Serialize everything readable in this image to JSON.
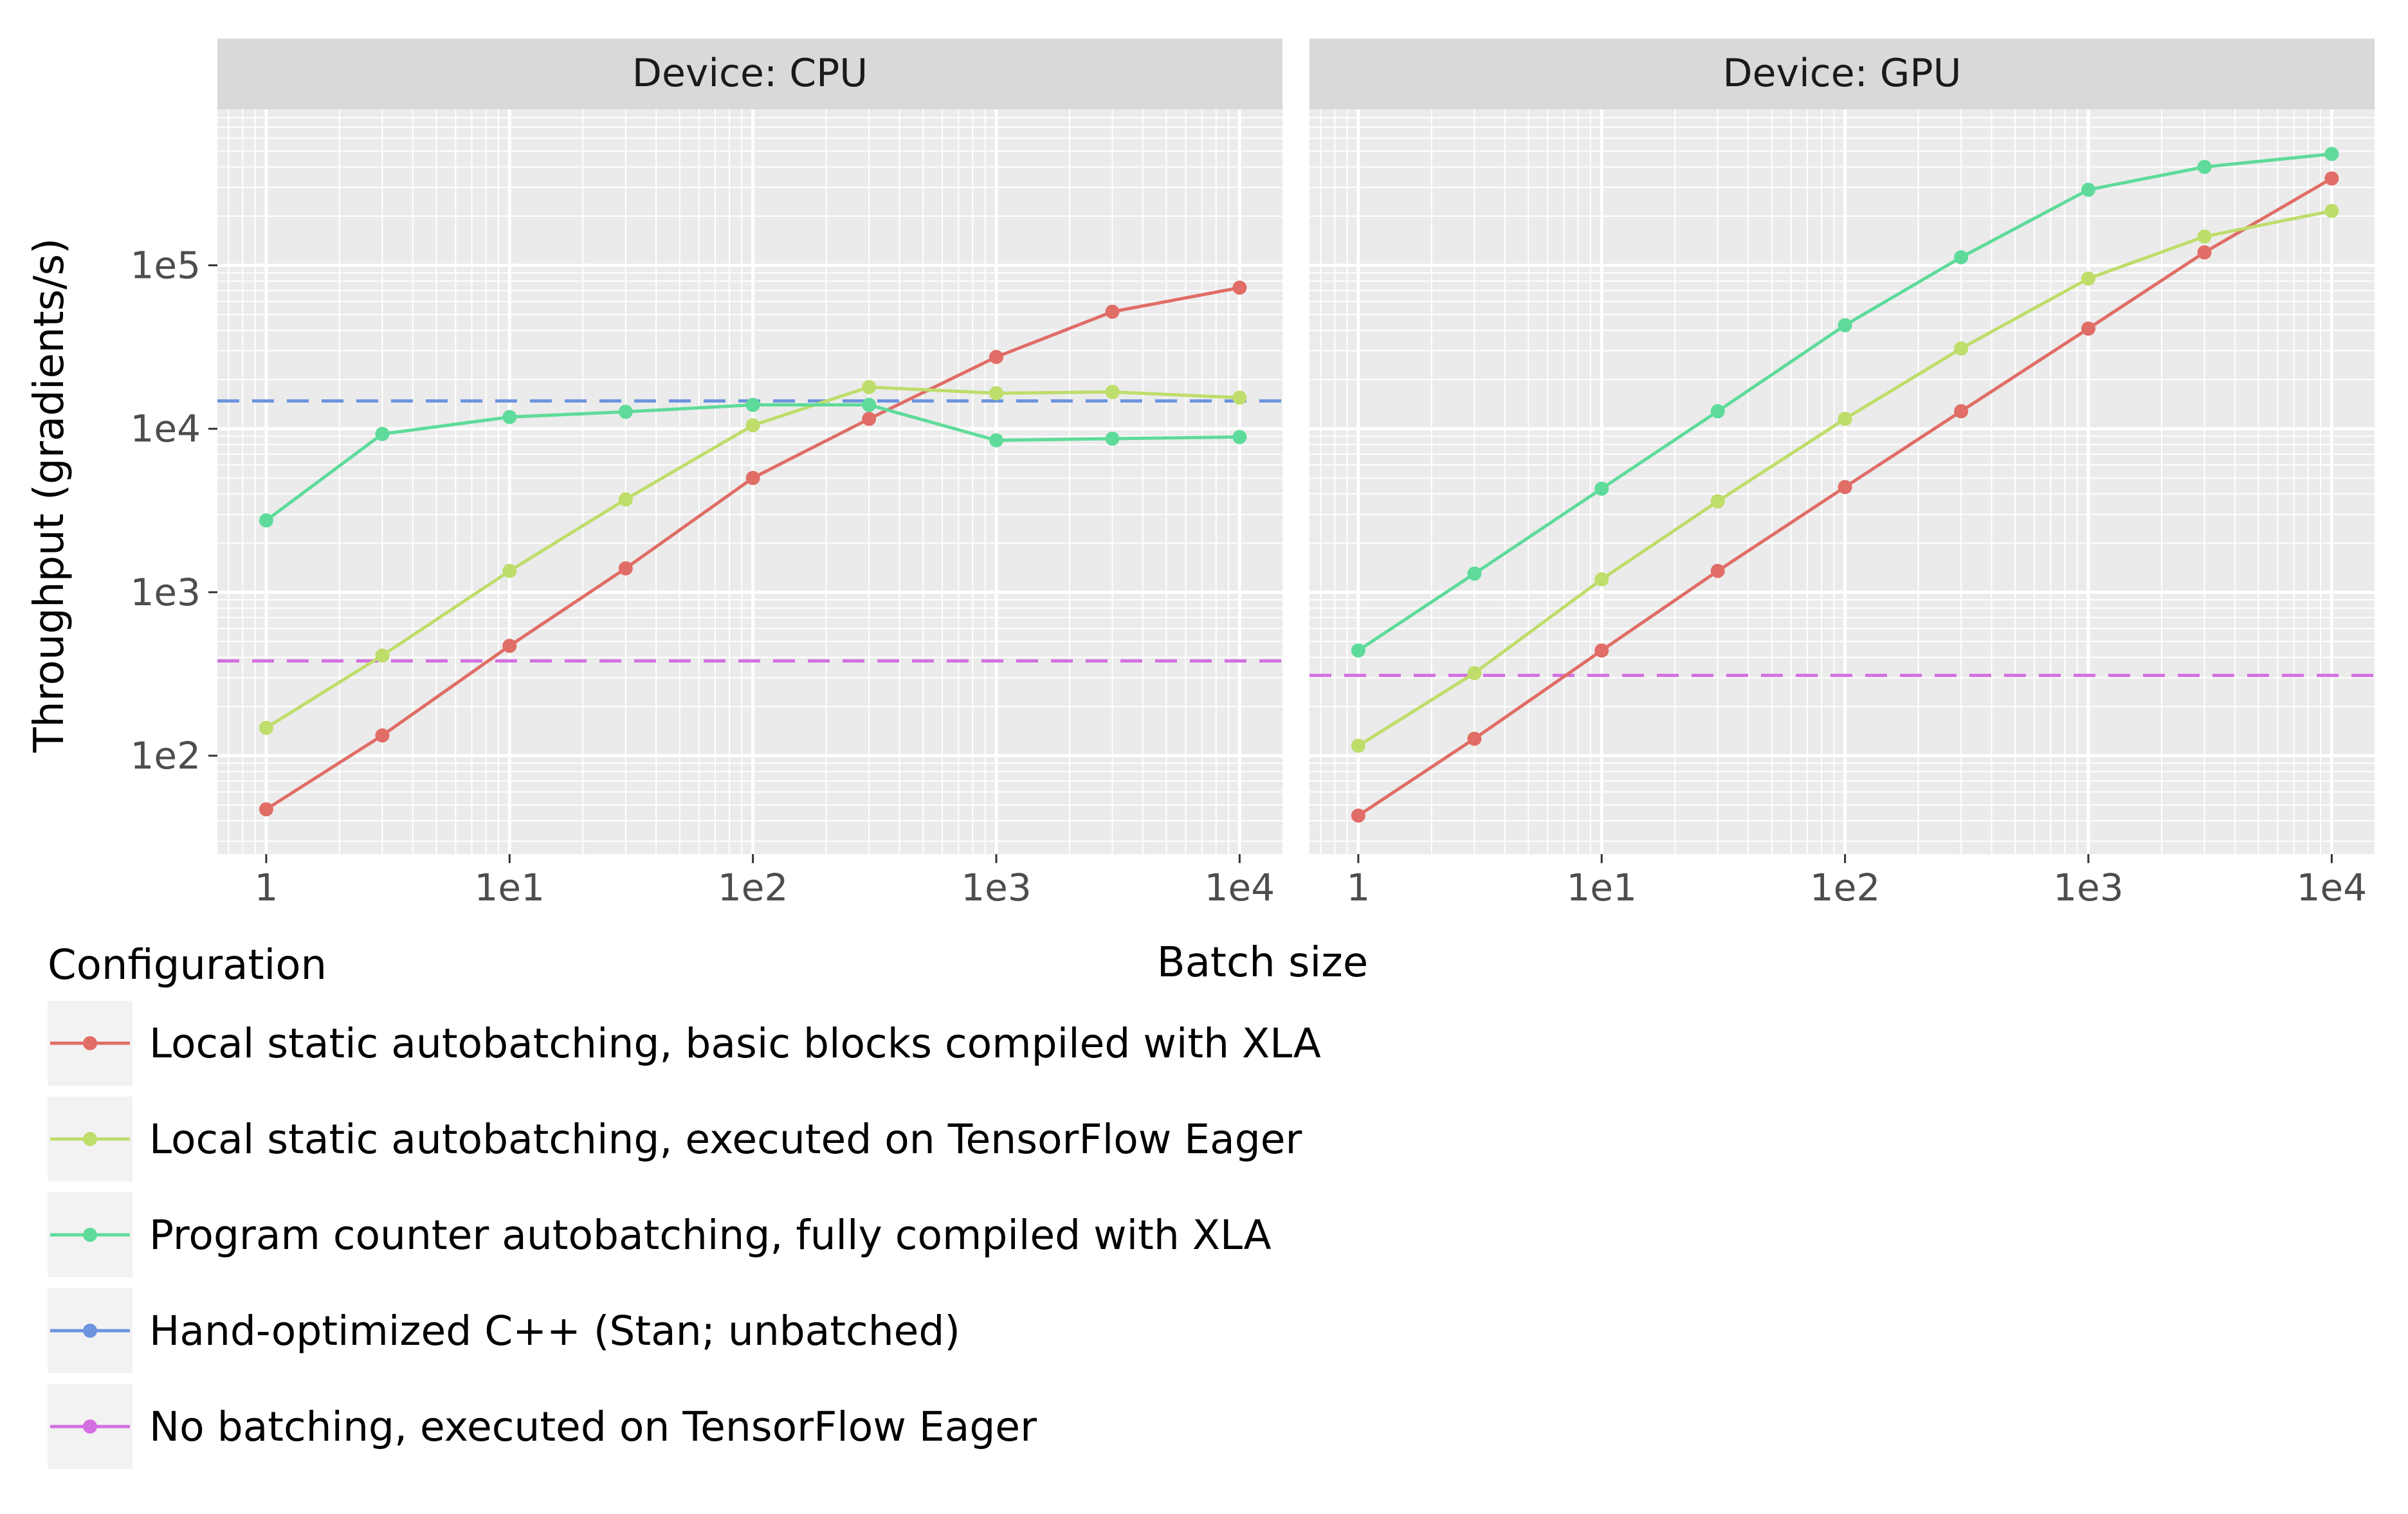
{
  "chart_data": {
    "type": "line",
    "x_scale": "log10",
    "y_scale": "log10",
    "xlabel": "Batch size",
    "ylabel": "Throughput (gradients/s)",
    "x_ticks": [
      {
        "value": 1,
        "label": "1"
      },
      {
        "value": 10,
        "label": "1e1"
      },
      {
        "value": 100,
        "label": "1e2"
      },
      {
        "value": 1000,
        "label": "1e3"
      },
      {
        "value": 10000,
        "label": "1e4"
      }
    ],
    "y_ticks": [
      {
        "value": 100,
        "label": "1e2"
      },
      {
        "value": 1000,
        "label": "1e3"
      },
      {
        "value": 10000,
        "label": "1e4"
      },
      {
        "value": 100000,
        "label": "1e5"
      }
    ],
    "xlim": [
      0.63,
      15000
    ],
    "ylim": [
      25,
      900000
    ],
    "grid": true,
    "legend": {
      "title": "Configuration",
      "placement": "bottom-left",
      "entries": [
        {
          "name": "Local static autobatching, basic blocks compiled with XLA",
          "color": "#E06D66"
        },
        {
          "name": "Local static autobatching, executed on TensorFlow Eager",
          "color": "#BEDD6A"
        },
        {
          "name": "Program counter autobatching, fully compiled with XLA",
          "color": "#5EDB9A"
        },
        {
          "name": "Hand-optimized C++ (Stan; unbatched)",
          "color": "#6B93DE"
        },
        {
          "name": "No batching, executed on TensorFlow Eager",
          "color": "#D36FE0"
        }
      ]
    },
    "facets": [
      {
        "title": "Device: CPU",
        "x": [
          1,
          3,
          10,
          30,
          100,
          300,
          1000,
          3000,
          10000
        ],
        "series": [
          {
            "name": "Local static autobatching, basic blocks compiled with XLA",
            "color": "#E06D66",
            "values": [
              47,
              133,
              470,
              1400,
              5000,
              11500,
              27500,
              52000,
              73000
            ]
          },
          {
            "name": "Local static autobatching, executed on TensorFlow Eager",
            "color": "#BEDD6A",
            "values": [
              148,
              410,
              1350,
              3700,
              10500,
              18000,
              16500,
              16800,
              15500
            ]
          },
          {
            "name": "Program counter autobatching, fully compiled with XLA",
            "color": "#5EDB9A",
            "values": [
              2750,
              9300,
              11800,
              12700,
              14000,
              14000,
              8500,
              8700,
              8900
            ]
          }
        ],
        "hlines": [
          {
            "name": "Hand-optimized C++ (Stan; unbatched)",
            "color": "#6B93DE",
            "value": 14800
          },
          {
            "name": "No batching, executed on TensorFlow Eager",
            "color": "#D36FE0",
            "value": 380
          }
        ]
      },
      {
        "title": "Device: GPU",
        "x": [
          1,
          3,
          10,
          30,
          100,
          300,
          1000,
          3000,
          10000
        ],
        "series": [
          {
            "name": "Local static autobatching, basic blocks compiled with XLA",
            "color": "#E06D66",
            "values": [
              43,
              127,
              440,
              1350,
              4400,
              12800,
              41000,
              120000,
              340000
            ]
          },
          {
            "name": "Local static autobatching, executed on TensorFlow Eager",
            "color": "#BEDD6A",
            "values": [
              115,
              320,
              1200,
              3600,
              11500,
              31000,
              83000,
              150000,
              215000
            ]
          },
          {
            "name": "Program counter autobatching, fully compiled with XLA",
            "color": "#5EDB9A",
            "values": [
              440,
              1300,
              4300,
              12800,
              43000,
              112000,
              290000,
              400000,
              480000
            ]
          }
        ],
        "hlines": [
          {
            "name": "No batching, executed on TensorFlow Eager",
            "color": "#D36FE0",
            "value": 310
          }
        ]
      }
    ]
  }
}
